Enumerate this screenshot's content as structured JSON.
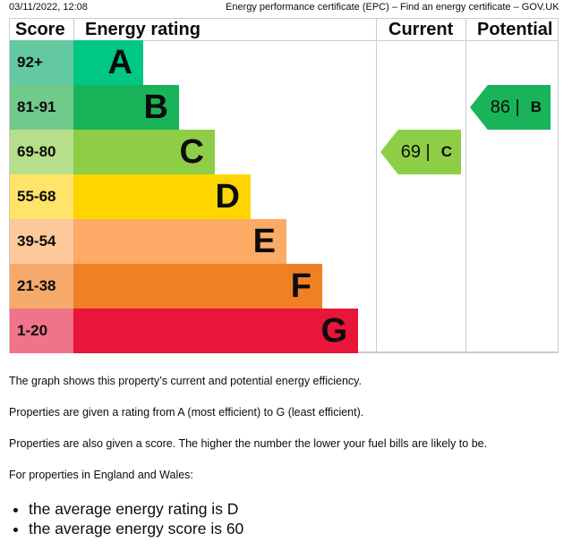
{
  "header": {
    "date": "03/11/2022, 12:08",
    "title": "Energy performance certificate (EPC) – Find an energy certificate – GOV.UK"
  },
  "table": {
    "col_score": "Score",
    "col_rating": "Energy rating",
    "col_current": "Current",
    "col_potential": "Potential"
  },
  "bands": [
    {
      "score": "92+",
      "letter": "A",
      "color": "#00c781",
      "score_color": "#63c9a1"
    },
    {
      "score": "81-91",
      "letter": "B",
      "color": "#19b459",
      "score_color": "#72c98c"
    },
    {
      "score": "69-80",
      "letter": "C",
      "color": "#8dce46",
      "score_color": "#b7df8b"
    },
    {
      "score": "55-68",
      "letter": "D",
      "color": "#ffd500",
      "score_color": "#ffe46a"
    },
    {
      "score": "39-54",
      "letter": "E",
      "color": "#fcaa65",
      "score_color": "#fdc99b"
    },
    {
      "score": "21-38",
      "letter": "F",
      "color": "#ef8023",
      "score_color": "#f5aa6b"
    },
    {
      "score": "1-20",
      "letter": "G",
      "color": "#e9153b",
      "score_color": "#f07389"
    }
  ],
  "current": {
    "score": "69 |",
    "letter": "C",
    "color": "#8dce46"
  },
  "potential": {
    "score": "86 |",
    "letter": "B",
    "color": "#19b459"
  },
  "text": {
    "p1": "The graph shows this property’s current and potential energy efficiency.",
    "p2": "Properties are given a rating from A (most efficient) to G (least efficient).",
    "p3": "Properties are also given a score. The higher the number the lower your fuel bills are likely to be.",
    "p4": "For properties in England and Wales:",
    "bullets": [
      "the average energy rating is D",
      "the average energy score is 60"
    ]
  }
}
